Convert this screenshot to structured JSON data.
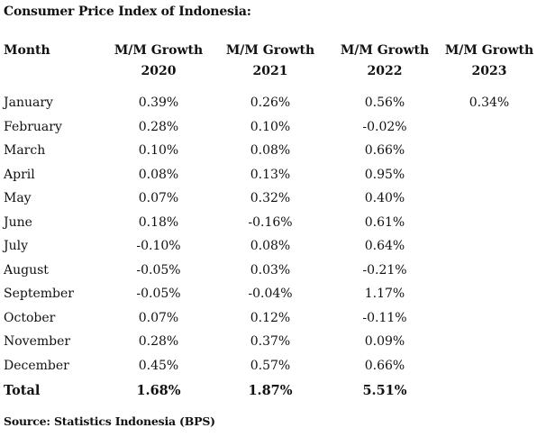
{
  "title": "Consumer Price Index of Indonesia:",
  "table": {
    "month_header": "Month",
    "columns": [
      {
        "label": "M/M Growth",
        "year": "2020"
      },
      {
        "label": "M/M Growth",
        "year": "2021"
      },
      {
        "label": "M/M Growth",
        "year": "2022"
      },
      {
        "label": "M/M Growth",
        "year": "2023"
      }
    ],
    "rows": [
      {
        "month": "January",
        "values": [
          "0.39%",
          "0.26%",
          "0.56%",
          "0.34%"
        ]
      },
      {
        "month": "February",
        "values": [
          "0.28%",
          "0.10%",
          "-0.02%",
          ""
        ]
      },
      {
        "month": "March",
        "values": [
          "0.10%",
          "0.08%",
          "0.66%",
          ""
        ]
      },
      {
        "month": "April",
        "values": [
          "0.08%",
          "0.13%",
          "0.95%",
          ""
        ]
      },
      {
        "month": "May",
        "values": [
          "0.07%",
          "0.32%",
          "0.40%",
          ""
        ]
      },
      {
        "month": "June",
        "values": [
          "0.18%",
          "-0.16%",
          "0.61%",
          ""
        ]
      },
      {
        "month": "July",
        "values": [
          "-0.10%",
          "0.08%",
          "0.64%",
          ""
        ]
      },
      {
        "month": "August",
        "values": [
          "-0.05%",
          "0.03%",
          "-0.21%",
          ""
        ]
      },
      {
        "month": "September",
        "values": [
          "-0.05%",
          "-0.04%",
          "1.17%",
          ""
        ]
      },
      {
        "month": "October",
        "values": [
          "0.07%",
          "0.12%",
          "-0.11%",
          ""
        ]
      },
      {
        "month": "November",
        "values": [
          "0.28%",
          "0.37%",
          "0.09%",
          ""
        ]
      },
      {
        "month": "December",
        "values": [
          "0.45%",
          "0.57%",
          "0.66%",
          ""
        ]
      }
    ],
    "total": {
      "label": "Total",
      "values": [
        "1.68%",
        "1.87%",
        "5.51%",
        ""
      ]
    }
  },
  "source": "Source: Statistics Indonesia (BPS)"
}
